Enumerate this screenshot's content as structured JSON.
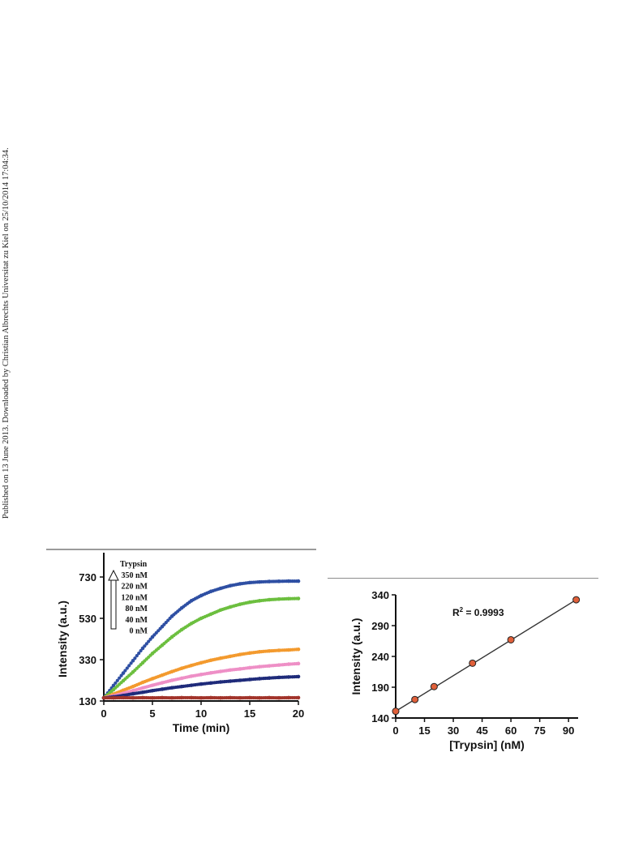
{
  "page": {
    "side_note": "Published on 13 June 2013. Downloaded by Christian Albrechts Universitat zu Kiel on 25/10/2014 17:04:34."
  },
  "chart_data": [
    {
      "type": "scatter",
      "xlabel": "Time (min)",
      "ylabel": "Intensity (a.u.)",
      "xlim": [
        0,
        20
      ],
      "ylim": [
        130,
        730
      ],
      "xticks": [
        0,
        5,
        10,
        15,
        20
      ],
      "yticks": [
        130,
        330,
        530,
        730
      ],
      "legend_title": "Trypsin",
      "legend_placement": "top-left",
      "legend_order": [
        "350 nM",
        "220 nM",
        "120 nM",
        "80 nM",
        "40 nM",
        "0 nM"
      ],
      "series": [
        {
          "name": "350 nM",
          "color": "#2e4fa3",
          "points": [
            [
              0,
              145
            ],
            [
              1,
              205
            ],
            [
              2,
              265
            ],
            [
              3,
              325
            ],
            [
              4,
              385
            ],
            [
              5,
              440
            ],
            [
              6,
              490
            ],
            [
              7,
              540
            ],
            [
              8,
              580
            ],
            [
              9,
              615
            ],
            [
              10,
              640
            ],
            [
              11,
              660
            ],
            [
              12,
              675
            ],
            [
              13,
              688
            ],
            [
              14,
              697
            ],
            [
              15,
              703
            ],
            [
              16,
              706
            ],
            [
              17,
              708
            ],
            [
              18,
              709
            ],
            [
              19,
              710
            ],
            [
              20,
              710
            ]
          ]
        },
        {
          "name": "220 nM",
          "color": "#6cbf3f",
          "points": [
            [
              0,
              145
            ],
            [
              1,
              185
            ],
            [
              2,
              228
            ],
            [
              3,
              270
            ],
            [
              4,
              315
            ],
            [
              5,
              360
            ],
            [
              6,
              400
            ],
            [
              7,
              440
            ],
            [
              8,
              475
            ],
            [
              9,
              505
            ],
            [
              10,
              530
            ],
            [
              11,
              550
            ],
            [
              12,
              570
            ],
            [
              13,
              585
            ],
            [
              14,
              598
            ],
            [
              15,
              608
            ],
            [
              16,
              615
            ],
            [
              17,
              620
            ],
            [
              18,
              623
            ],
            [
              19,
              625
            ],
            [
              20,
              626
            ]
          ]
        },
        {
          "name": "120 nM",
          "color": "#f39a2e",
          "points": [
            [
              0,
              145
            ],
            [
              1,
              163
            ],
            [
              2,
              182
            ],
            [
              3,
              200
            ],
            [
              4,
              220
            ],
            [
              5,
              238
            ],
            [
              6,
              255
            ],
            [
              7,
              272
            ],
            [
              8,
              288
            ],
            [
              9,
              302
            ],
            [
              10,
              315
            ],
            [
              11,
              327
            ],
            [
              12,
              337
            ],
            [
              13,
              346
            ],
            [
              14,
              355
            ],
            [
              15,
              362
            ],
            [
              16,
              368
            ],
            [
              17,
              372
            ],
            [
              18,
              375
            ],
            [
              19,
              377
            ],
            [
              20,
              380
            ]
          ]
        },
        {
          "name": "80 nM",
          "color": "#ee8fc6",
          "points": [
            [
              0,
              145
            ],
            [
              1,
              155
            ],
            [
              2,
              167
            ],
            [
              3,
              180
            ],
            [
              4,
              193
            ],
            [
              5,
              206
            ],
            [
              6,
              218
            ],
            [
              7,
              230
            ],
            [
              8,
              240
            ],
            [
              9,
              250
            ],
            [
              10,
              258
            ],
            [
              11,
              266
            ],
            [
              12,
              273
            ],
            [
              13,
              280
            ],
            [
              14,
              285
            ],
            [
              15,
              291
            ],
            [
              16,
              296
            ],
            [
              17,
              300
            ],
            [
              18,
              304
            ],
            [
              19,
              308
            ],
            [
              20,
              311
            ]
          ]
        },
        {
          "name": "40 nM",
          "color": "#1f2b7a",
          "points": [
            [
              0,
              145
            ],
            [
              1,
              150
            ],
            [
              2,
              157
            ],
            [
              3,
              165
            ],
            [
              4,
              172
            ],
            [
              5,
              180
            ],
            [
              6,
              187
            ],
            [
              7,
              194
            ],
            [
              8,
              200
            ],
            [
              9,
              206
            ],
            [
              10,
              212
            ],
            [
              11,
              217
            ],
            [
              12,
              222
            ],
            [
              13,
              226
            ],
            [
              14,
              230
            ],
            [
              15,
              234
            ],
            [
              16,
              238
            ],
            [
              17,
              241
            ],
            [
              18,
              244
            ],
            [
              19,
              246
            ],
            [
              20,
              248
            ]
          ]
        },
        {
          "name": "0 nM",
          "color": "#a2342b",
          "points": [
            [
              0,
              145
            ],
            [
              1,
              145
            ],
            [
              2,
              146
            ],
            [
              3,
              145
            ],
            [
              4,
              146
            ],
            [
              5,
              145
            ],
            [
              6,
              146
            ],
            [
              7,
              145
            ],
            [
              8,
              146
            ],
            [
              9,
              146
            ],
            [
              10,
              145
            ],
            [
              11,
              146
            ],
            [
              12,
              145
            ],
            [
              13,
              146
            ],
            [
              14,
              145
            ],
            [
              15,
              146
            ],
            [
              16,
              145
            ],
            [
              17,
              146
            ],
            [
              18,
              145
            ],
            [
              19,
              146
            ],
            [
              20,
              146
            ]
          ]
        }
      ]
    },
    {
      "type": "scatter",
      "xlabel": "[Trypsin] (nM)",
      "ylabel": "Intensity (a.u.)",
      "xlim": [
        0,
        95
      ],
      "ylim": [
        140,
        340
      ],
      "xticks": [
        0,
        15,
        30,
        45,
        60,
        75,
        90
      ],
      "yticks": [
        140,
        190,
        240,
        290,
        340
      ],
      "annotation": "R",
      "annotation_sup": "2",
      "annotation_rest": " = 0.9993",
      "marker_color": "#e0603a",
      "fit_line": [
        [
          0,
          151
        ],
        [
          94,
          332
        ]
      ],
      "points": [
        [
          0,
          151
        ],
        [
          10,
          170
        ],
        [
          20,
          191
        ],
        [
          40,
          229
        ],
        [
          60,
          267
        ],
        [
          94,
          332
        ]
      ]
    }
  ]
}
